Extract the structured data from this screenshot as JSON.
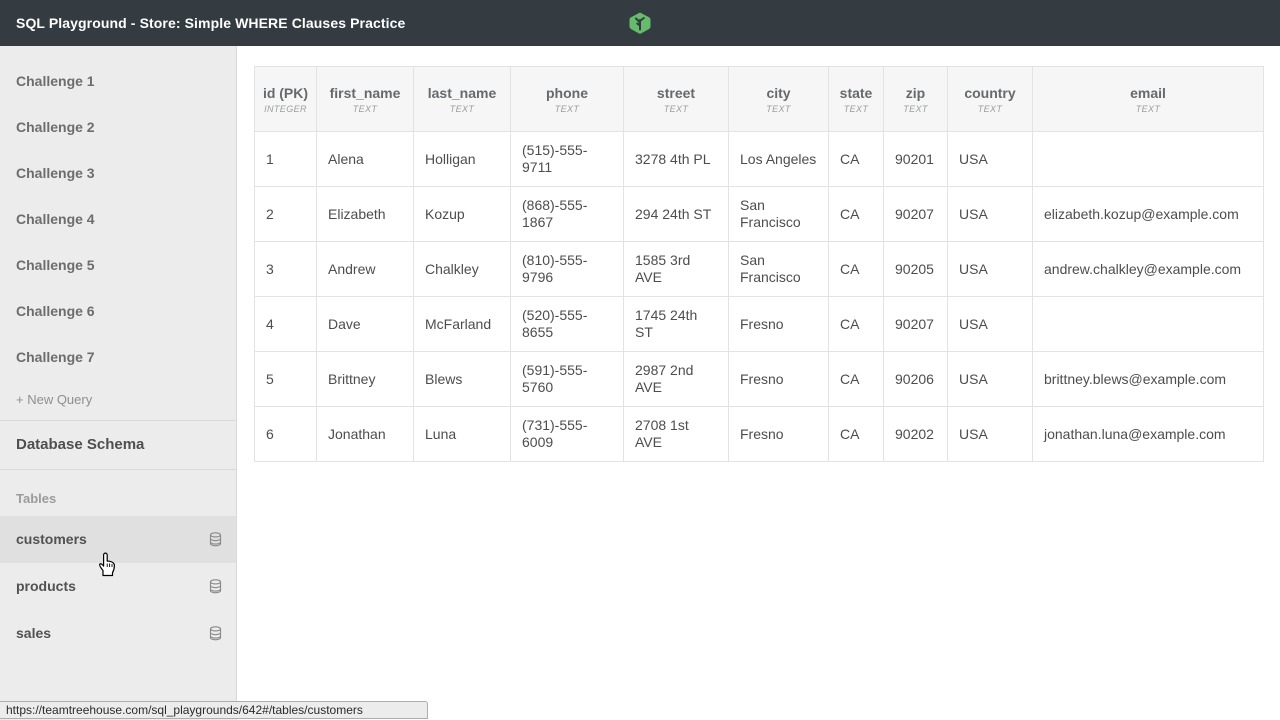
{
  "topbar": {
    "title": "SQL Playground - Store: Simple WHERE Clauses Practice",
    "logo_color": "#67bb6d"
  },
  "sidebar": {
    "challenges": [
      {
        "label": "Challenge 1"
      },
      {
        "label": "Challenge 2"
      },
      {
        "label": "Challenge 3"
      },
      {
        "label": "Challenge 4"
      },
      {
        "label": "Challenge 5"
      },
      {
        "label": "Challenge 6"
      },
      {
        "label": "Challenge 7"
      }
    ],
    "new_query_label": "+ New Query",
    "schema_label": "Database Schema",
    "tables_section_label": "Tables",
    "tables": [
      {
        "name": "customers",
        "active": true
      },
      {
        "name": "products",
        "active": false
      },
      {
        "name": "sales",
        "active": false
      }
    ]
  },
  "results_table": {
    "columns": [
      {
        "name": "id (PK)",
        "type": "INTEGER"
      },
      {
        "name": "first_name",
        "type": "TEXT"
      },
      {
        "name": "last_name",
        "type": "TEXT"
      },
      {
        "name": "phone",
        "type": "TEXT"
      },
      {
        "name": "street",
        "type": "TEXT"
      },
      {
        "name": "city",
        "type": "TEXT"
      },
      {
        "name": "state",
        "type": "TEXT"
      },
      {
        "name": "zip",
        "type": "TEXT"
      },
      {
        "name": "country",
        "type": "TEXT"
      },
      {
        "name": "email",
        "type": "TEXT"
      }
    ],
    "rows": [
      [
        "1",
        "Alena",
        "Holligan",
        "(515)-555-9711",
        "3278 4th PL",
        "Los Angeles",
        "CA",
        "90201",
        "USA",
        ""
      ],
      [
        "2",
        "Elizabeth",
        "Kozup",
        "(868)-555-1867",
        "294 24th ST",
        "San Francisco",
        "CA",
        "90207",
        "USA",
        "elizabeth.kozup@example.com"
      ],
      [
        "3",
        "Andrew",
        "Chalkley",
        "(810)-555-9796",
        "1585 3rd AVE",
        "San Francisco",
        "CA",
        "90205",
        "USA",
        "andrew.chalkley@example.com"
      ],
      [
        "4",
        "Dave",
        "McFarland",
        "(520)-555-8655",
        "1745 24th ST",
        "Fresno",
        "CA",
        "90207",
        "USA",
        ""
      ],
      [
        "5",
        "Brittney",
        "Blews",
        "(591)-555-5760",
        "2987 2nd AVE",
        "Fresno",
        "CA",
        "90206",
        "USA",
        "brittney.blews@example.com"
      ],
      [
        "6",
        "Jonathan",
        "Luna",
        "(731)-555-6009",
        "2708 1st AVE",
        "Fresno",
        "CA",
        "90202",
        "USA",
        "jonathan.luna@example.com"
      ]
    ]
  },
  "statusbar": {
    "url": "https://teamtreehouse.com/sql_playgrounds/642#/tables/customers"
  }
}
